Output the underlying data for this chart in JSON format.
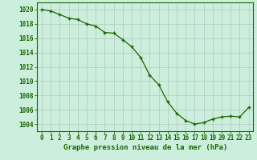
{
  "x": [
    0,
    1,
    2,
    3,
    4,
    5,
    6,
    7,
    8,
    9,
    10,
    11,
    12,
    13,
    14,
    15,
    16,
    17,
    18,
    19,
    20,
    21,
    22,
    23
  ],
  "y": [
    1020,
    1019.8,
    1019.3,
    1018.8,
    1018.6,
    1018.0,
    1017.7,
    1016.8,
    1016.7,
    1015.8,
    1014.8,
    1013.3,
    1010.8,
    1009.5,
    1007.1,
    1005.5,
    1004.5,
    1004.0,
    1004.2,
    1004.7,
    1005.0,
    1005.1,
    1005.0,
    1006.3
  ],
  "line_color": "#1a6600",
  "marker_color": "#1a6600",
  "bg_color": "#cceedd",
  "grid_color": "#b0c8c0",
  "xlabel": "Graphe pression niveau de la mer (hPa)",
  "ylim": [
    1003,
    1021
  ],
  "xlim": [
    -0.5,
    23.5
  ],
  "yticks": [
    1004,
    1006,
    1008,
    1010,
    1012,
    1014,
    1016,
    1018,
    1020
  ],
  "xticks": [
    0,
    1,
    2,
    3,
    4,
    5,
    6,
    7,
    8,
    9,
    10,
    11,
    12,
    13,
    14,
    15,
    16,
    17,
    18,
    19,
    20,
    21,
    22,
    23
  ],
  "tick_fontsize": 5.5,
  "xlabel_fontsize": 6.5,
  "marker_size": 3.5,
  "line_width": 0.9
}
